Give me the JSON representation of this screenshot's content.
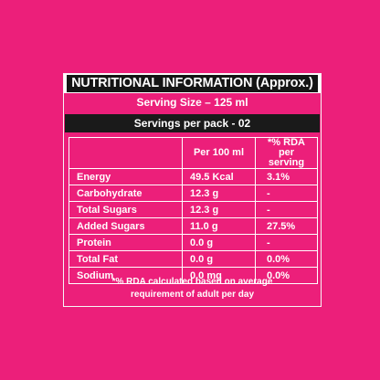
{
  "panel": {
    "title": "NUTRITIONAL INFORMATION (Approx.)",
    "serving_size": "Serving Size – 125 ml",
    "servings_per_pack": "Servings per pack - 02"
  },
  "table": {
    "headers": [
      "",
      "Per 100 ml",
      "*% RDA per serving"
    ],
    "rows": [
      {
        "nutrient": "Energy",
        "per_100ml": "49.5 Kcal",
        "rda": "3.1%"
      },
      {
        "nutrient": "Carbohydrate",
        "per_100ml": "12.3 g",
        "rda": "-"
      },
      {
        "nutrient": "Total Sugars",
        "per_100ml": "12.3 g",
        "rda": "-"
      },
      {
        "nutrient": "Added Sugars",
        "per_100ml": "11.0 g",
        "rda": "27.5%"
      },
      {
        "nutrient": "Protein",
        "per_100ml": "0.0 g",
        "rda": "-"
      },
      {
        "nutrient": "Total Fat",
        "per_100ml": "0.0 g",
        "rda": "0.0%"
      },
      {
        "nutrient": "Sodium",
        "per_100ml": "0.0 mg",
        "rda": "0.0%"
      }
    ]
  },
  "footnote": {
    "line1": "*% RDA calculated based on average",
    "line2": "requirement of adult per day"
  },
  "colors": {
    "background": "#ec1f7a",
    "title_bar": "#151515",
    "text": "#ffffff"
  }
}
